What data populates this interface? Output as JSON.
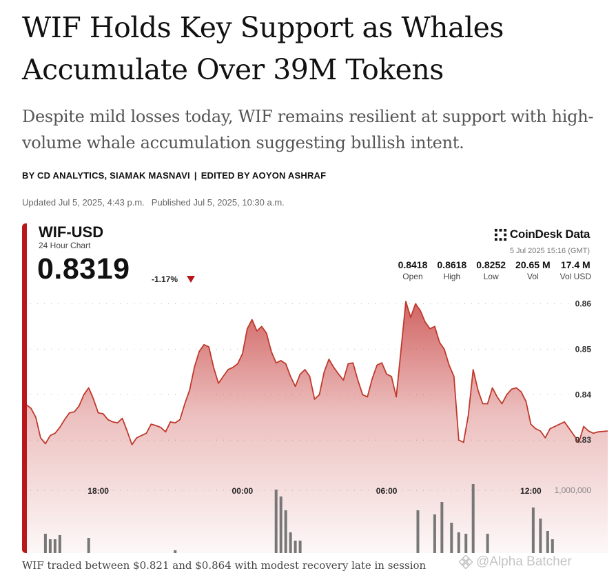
{
  "article": {
    "headline_line1": "WIF Holds Key Support as Whales",
    "headline_line2": "Accumulate Over 39M Tokens",
    "dek_line1": "Despite mild losses today, WIF remains resilient at support with high-",
    "dek_line2": "volume whale accumulation suggesting bullish intent.",
    "byline_authors": "BY CD ANALYTICS, SIAMAK MASNAVI",
    "byline_separator": "|",
    "byline_editor": "EDITED BY AOYON ASHRAF",
    "updated": "Updated Jul 5, 2025, 4:43 p.m.",
    "published": "Published Jul 5, 2025, 10:30 a.m.",
    "caption": "WIF traded between $0.821 and $0.864 with modest recovery late in session"
  },
  "watermark": {
    "text": "@Alpha Batcher",
    "icon": "binance-square-icon"
  },
  "chart_header": {
    "pair": "WIF-USD",
    "subtitle": "24 Hour Chart",
    "price": "0.8319",
    "change": "-1.17%",
    "change_direction_icon": "down-triangle-icon",
    "brand": "CoinDesk Data",
    "brand_icon": "coindesk-logo-icon",
    "timestamp": "5 Jul 2025 15:16 (GMT)",
    "stats": [
      {
        "value": "0.8418",
        "label": "Open"
      },
      {
        "value": "0.8618",
        "label": "High"
      },
      {
        "value": "0.8252",
        "label": "Low"
      },
      {
        "value": "20.65 M",
        "label": "Vol"
      },
      {
        "value": "17.4 M",
        "label": "Vol USD"
      }
    ]
  },
  "colors": {
    "accent": "#b8171b",
    "line": "#c0392b",
    "fill_top": "#c94a48",
    "volume_bar": "#777777"
  },
  "chart_data": {
    "type": "area",
    "title": "WIF-USD",
    "subtitle": "24 Hour Chart",
    "x_ticks": [
      "18:00",
      "00:00",
      "06:00",
      "12:00"
    ],
    "x_tick_positions_hours": [
      3,
      9,
      15,
      21
    ],
    "x_range_hours": [
      0,
      24.2
    ],
    "y_ticks": [
      "0.86",
      "0.85",
      "0.84",
      "0.83"
    ],
    "y_tick_values": [
      0.86,
      0.85,
      0.84,
      0.83
    ],
    "ylim": [
      0.8185,
      0.8625
    ],
    "volume_axis_label": "1,000,000",
    "volume_axis_value": 1000000,
    "grid": "dotted-horizontal",
    "series": [
      {
        "x": [
          0,
          0.2,
          0.4,
          0.6,
          0.8,
          1.0,
          1.2,
          1.4,
          1.6,
          1.8,
          2.0,
          2.2,
          2.4,
          2.6,
          2.8,
          3.0,
          3.2,
          3.4,
          3.6,
          3.8,
          4.0,
          4.2,
          4.4,
          4.6,
          4.8,
          5.0,
          5.2,
          5.4,
          5.6,
          5.8,
          6.0,
          6.2,
          6.4,
          6.6,
          6.8,
          7.0,
          7.2,
          7.4,
          7.6,
          7.8,
          8.0,
          8.2,
          8.4,
          8.6,
          8.8,
          9.0,
          9.2,
          9.4,
          9.6,
          9.8,
          10.0,
          10.2,
          10.4,
          10.6,
          10.8,
          11.0,
          11.2,
          11.4,
          11.6,
          11.8,
          12.0,
          12.2,
          12.4,
          12.6,
          12.8,
          13.0,
          13.2,
          13.4,
          13.6,
          13.8,
          14.0,
          14.2,
          14.4,
          14.6,
          14.8,
          15.0,
          15.2,
          15.4,
          15.6,
          15.8,
          16.0,
          16.2,
          16.4,
          16.6,
          16.8,
          17.0,
          17.2,
          17.4,
          17.6,
          17.8,
          18.0,
          18.2,
          18.4,
          18.6,
          18.8,
          19.0,
          19.2,
          19.4,
          19.6,
          19.8,
          20.0,
          20.2,
          20.4,
          20.6,
          20.8,
          21.0,
          21.2,
          21.4,
          21.6,
          21.8,
          22.0,
          22.2,
          22.4,
          22.6,
          22.8,
          23.0,
          23.2,
          23.4,
          23.6,
          23.8,
          24.0,
          24.2
        ],
        "values": [
          0.8378,
          0.837,
          0.835,
          0.8305,
          0.8292,
          0.831,
          0.8315,
          0.8328,
          0.8345,
          0.836,
          0.8362,
          0.8375,
          0.84,
          0.8415,
          0.839,
          0.836,
          0.8358,
          0.8345,
          0.834,
          0.8338,
          0.8348,
          0.832,
          0.829,
          0.8305,
          0.831,
          0.8315,
          0.8335,
          0.8332,
          0.8328,
          0.8318,
          0.834,
          0.8338,
          0.8345,
          0.838,
          0.841,
          0.846,
          0.8495,
          0.851,
          0.8505,
          0.846,
          0.8425,
          0.844,
          0.8455,
          0.846,
          0.8468,
          0.849,
          0.8545,
          0.8565,
          0.854,
          0.855,
          0.8535,
          0.8495,
          0.847,
          0.8475,
          0.8468,
          0.844,
          0.8418,
          0.8445,
          0.8455,
          0.844,
          0.839,
          0.84,
          0.845,
          0.8478,
          0.846,
          0.8445,
          0.8432,
          0.8468,
          0.847,
          0.8432,
          0.84,
          0.8395,
          0.8435,
          0.8465,
          0.847,
          0.8445,
          0.844,
          0.8395,
          0.85,
          0.8605,
          0.857,
          0.86,
          0.8585,
          0.856,
          0.8545,
          0.855,
          0.8515,
          0.85,
          0.8465,
          0.844,
          0.83,
          0.8295,
          0.8355,
          0.8455,
          0.841,
          0.838,
          0.838,
          0.8415,
          0.8395,
          0.838,
          0.84,
          0.8412,
          0.8415,
          0.8406,
          0.8385,
          0.8335,
          0.8325,
          0.832,
          0.8305,
          0.8325,
          0.833,
          0.8335,
          0.834,
          0.8325,
          0.831,
          0.8295,
          0.833,
          0.832,
          0.8315,
          0.8318,
          0.8319,
          0.832
        ]
      }
    ],
    "volume_x_hours": [
      0.8,
      1.0,
      1.2,
      1.4,
      2.6,
      6.2,
      10.4,
      10.6,
      10.8,
      11.0,
      11.2,
      11.4,
      16.3,
      17.0,
      17.3,
      17.7,
      18.0,
      18.3,
      18.6,
      19.2,
      21.1,
      21.4,
      21.7,
      21.9
    ],
    "volume_values": [
      0.28,
      0.2,
      0.2,
      0.26,
      0.22,
      0.04,
      0.92,
      0.82,
      0.62,
      0.3,
      0.18,
      0.18,
      0.62,
      0.56,
      0.74,
      0.44,
      0.3,
      0.28,
      1.0,
      0.28,
      0.66,
      0.5,
      0.32,
      0.2
    ]
  }
}
